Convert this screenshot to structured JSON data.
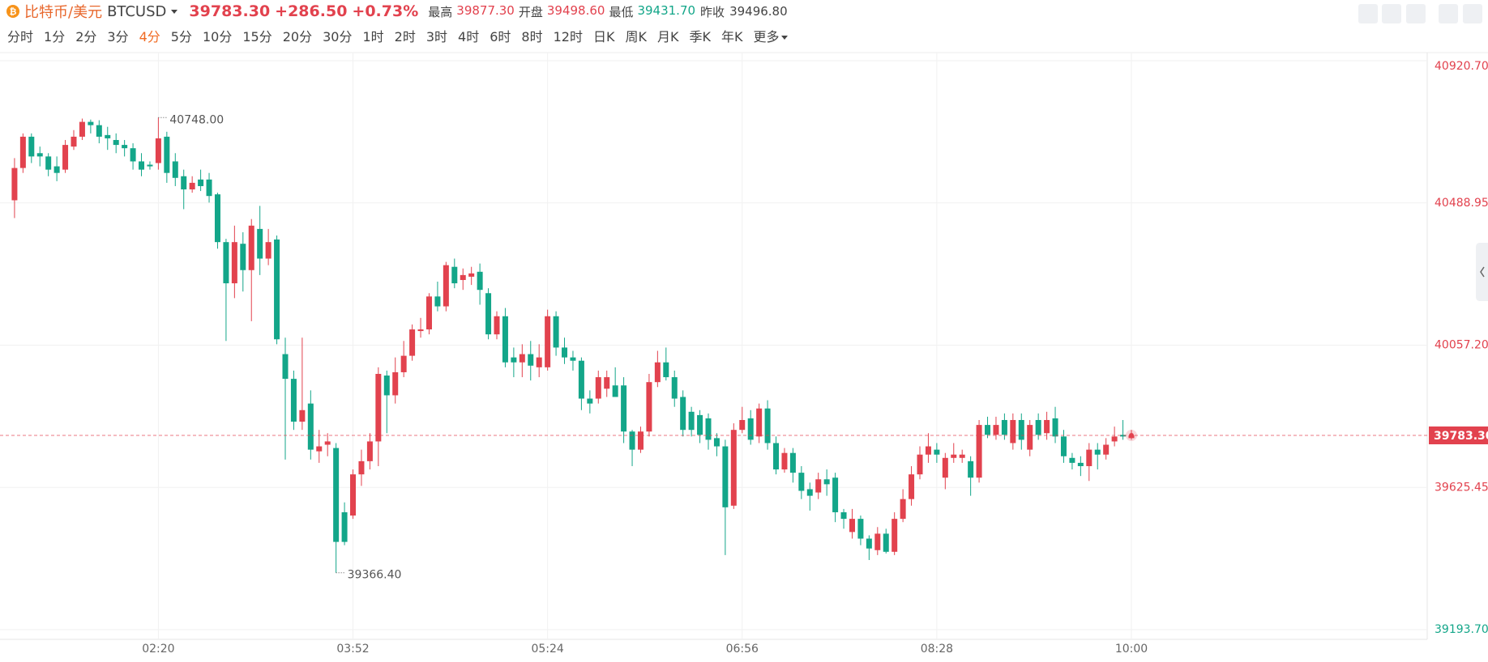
{
  "header": {
    "name": "比特币/美元",
    "symbol": "BTCUSD",
    "change": "+286.50",
    "change_pct": "+0.73%",
    "stats": [
      {
        "label": "最高",
        "value": "39877.30"
      },
      {
        "label": "开盘",
        "value": "39498.60"
      },
      {
        "label": "最低",
        "value": "39431.70"
      }
    ],
    "prev_close_label": "昨收",
    "more": "更多",
    "periods": [
      "分时",
      "1分",
      "2分",
      "3分",
      "4分",
      "5分",
      "10分",
      "15分",
      "20分",
      "30分",
      "1时",
      "2时",
      "3时",
      "4时",
      "6时",
      "8时",
      "12时",
      "日K",
      "周K",
      "月K",
      "季K",
      "年K"
    ],
    "active_period": "4分"
  },
  "chart_data": {
    "type": "candlestick",
    "up_color": "#e2424e",
    "down_color": "#13a689",
    "grid": true,
    "categories": [
      null,
      null,
      null,
      null,
      null,
      null,
      null,
      null,
      null,
      null,
      null,
      null,
      null,
      null,
      null,
      null,
      null,
      "02:20",
      null,
      null,
      null,
      null,
      null,
      null,
      null,
      null,
      null,
      null,
      null,
      null,
      null,
      null,
      null,
      null,
      null,
      null,
      null,
      null,
      null,
      null,
      "03:52",
      null,
      null,
      null,
      null,
      null,
      null,
      null,
      null,
      null,
      null,
      null,
      null,
      null,
      null,
      null,
      null,
      null,
      null,
      null,
      null,
      null,
      null,
      "05:24",
      null,
      null,
      null,
      null,
      null,
      null,
      null,
      null,
      null,
      null,
      null,
      null,
      null,
      null,
      null,
      null,
      null,
      null,
      null,
      null,
      null,
      null,
      "06:56",
      null,
      null,
      null,
      null,
      null,
      null,
      null,
      null,
      null,
      null,
      null,
      null,
      null,
      null,
      null,
      null,
      null,
      null,
      null,
      null,
      null,
      null,
      "08:28",
      null,
      null,
      null,
      null,
      null,
      null,
      null,
      null,
      null,
      null,
      null,
      null,
      null,
      null,
      null,
      null,
      null,
      null,
      null,
      null,
      null,
      null,
      "10:00"
    ],
    "open": [
      40497,
      40595,
      40690,
      40640,
      40630,
      40600,
      40590,
      40660,
      40690,
      40735,
      40725,
      40695,
      40680,
      40665,
      40655,
      40615,
      40605,
      40610,
      40690,
      40615,
      40570,
      40530,
      40560,
      40560,
      40515,
      40370,
      40245,
      40365,
      40285,
      40410,
      40320,
      40378,
      40030,
      39955,
      39825,
      39880,
      39735,
      39755,
      39745,
      39550,
      39540,
      39665,
      39705,
      39765,
      39965,
      39905,
      39975,
      40025,
      40100,
      40105,
      40205,
      40175,
      40295,
      40255,
      40265,
      40280,
      40215,
      40090,
      40145,
      40020,
      40005,
      40030,
      39990,
      39990,
      40145,
      40050,
      40020,
      40010,
      39895,
      39895,
      39925,
      39935,
      39935,
      39795,
      39740,
      39795,
      39945,
      40005,
      39960,
      39900,
      39855,
      39845,
      39835,
      39775,
      39750,
      39570,
      39800,
      39835,
      39780,
      39865,
      39760,
      39680,
      39730,
      39670,
      39620,
      39610,
      39650,
      39655,
      39550,
      39490,
      39530,
      39470,
      39435,
      39485,
      39430,
      39530,
      39590,
      39665,
      39725,
      39740,
      39655,
      39715,
      39715,
      39705,
      39655,
      39815,
      39785,
      39830,
      39760,
      39830,
      39740,
      39830,
      39790,
      39835,
      39780,
      39715,
      39700,
      39690,
      39740,
      39725,
      39765,
      39785,
      39775
    ],
    "high": [
      40625,
      40700,
      40700,
      40660,
      40640,
      40630,
      40680,
      40710,
      40745,
      40742,
      40740,
      40720,
      40700,
      40680,
      40670,
      40640,
      40615,
      40748,
      40705,
      40640,
      40590,
      40570,
      40590,
      40580,
      40520,
      40380,
      40420,
      40400,
      40440,
      40480,
      40410,
      40390,
      40080,
      39980,
      40080,
      39920,
      39800,
      39790,
      39760,
      39580,
      39680,
      39740,
      39790,
      39990,
      39980,
      40020,
      40070,
      40120,
      40140,
      40215,
      40250,
      40310,
      40320,
      40290,
      40295,
      40305,
      40230,
      40160,
      40170,
      40050,
      40060,
      40070,
      40060,
      40165,
      40160,
      40080,
      40040,
      40020,
      39920,
      39980,
      39980,
      39990,
      39960,
      39800,
      39810,
      39970,
      40040,
      40050,
      39980,
      39920,
      39870,
      39860,
      39850,
      39790,
      39770,
      39820,
      39870,
      39860,
      39880,
      39890,
      39780,
      39745,
      39745,
      39690,
      39640,
      39670,
      39680,
      39670,
      39560,
      39560,
      39540,
      39480,
      39505,
      39500,
      39550,
      39620,
      39690,
      39750,
      39790,
      39760,
      39730,
      39760,
      39740,
      39720,
      39830,
      39840,
      39840,
      39850,
      39850,
      39850,
      39830,
      39850,
      39855,
      39870,
      39800,
      39730,
      39720,
      39760,
      39760,
      39775,
      39810,
      39830,
      39800
    ],
    "low": [
      40443,
      40580,
      40610,
      40600,
      40570,
      40555,
      40580,
      40650,
      40680,
      40700,
      40670,
      40650,
      40640,
      40630,
      40590,
      40570,
      40590,
      40590,
      40550,
      40540,
      40470,
      40520,
      40525,
      40490,
      40350,
      40070,
      40200,
      40220,
      40130,
      40270,
      40300,
      40060,
      39710,
      39800,
      39800,
      39710,
      39700,
      39720,
      39366.4,
      39450,
      39530,
      39630,
      39680,
      39690,
      39790,
      39880,
      39960,
      40010,
      40080,
      40090,
      40160,
      40160,
      40230,
      40225,
      40240,
      40180,
      40075,
      40075,
      39990,
      39960,
      39960,
      39950,
      39960,
      39980,
      40025,
      40000,
      39980,
      39860,
      39850,
      39880,
      39900,
      39900,
      39760,
      39690,
      39730,
      39780,
      39930,
      39950,
      39870,
      39780,
      39780,
      39760,
      39740,
      39720,
      39420,
      39560,
      39790,
      39755,
      39760,
      39740,
      39665,
      39670,
      39640,
      39590,
      39555,
      39590,
      39600,
      39520,
      39500,
      39470,
      39450,
      39405,
      39420,
      39425,
      39420,
      39520,
      39570,
      39650,
      39700,
      39700,
      39620,
      39700,
      39700,
      39600,
      39640,
      39775,
      39770,
      39770,
      39740,
      39740,
      39720,
      39770,
      39770,
      39760,
      39700,
      39680,
      39660,
      39645,
      39680,
      39710,
      39750,
      39770,
      39770
    ],
    "close": [
      40595,
      40690,
      40630,
      40630,
      40590,
      40580,
      40665,
      40690,
      40735,
      40725,
      40690,
      40685,
      40665,
      40655,
      40615,
      40590,
      40600,
      40685,
      40580,
      40565,
      40530,
      40550,
      40540,
      40510,
      40370,
      40245,
      40370,
      40285,
      40420,
      40320,
      40370,
      40075,
      39955,
      39825,
      39860,
      39740,
      39750,
      39765,
      39460,
      39460,
      39665,
      39705,
      39765,
      39970,
      39905,
      39975,
      40025,
      40105,
      40105,
      40205,
      40175,
      40300,
      40245,
      40270,
      40275,
      40225,
      40090,
      40145,
      40005,
      40005,
      40030,
      39995,
      40020,
      40145,
      40050,
      40020,
      40010,
      39895,
      39880,
      39960,
      39960,
      39900,
      39795,
      39740,
      39795,
      39945,
      40005,
      39960,
      39895,
      39800,
      39800,
      39785,
      39770,
      39750,
      39565,
      39800,
      39830,
      39770,
      39865,
      39760,
      39680,
      39730,
      39670,
      39615,
      39600,
      39650,
      39635,
      39550,
      39530,
      39530,
      39470,
      39440,
      39485,
      39430,
      39530,
      39590,
      39665,
      39725,
      39750,
      39725,
      39715,
      39725,
      39725,
      39655,
      39815,
      39785,
      39815,
      39785,
      39830,
      39770,
      39815,
      39785,
      39830,
      39780,
      39720,
      39700,
      39690,
      39740,
      39725,
      39755,
      39780,
      39780,
      39783.3
    ],
    "ylim": [
      39193.7,
      40920.7
    ],
    "yticks": [
      {
        "value": 39193.7,
        "label": "39193.70"
      },
      {
        "value": 39625.45,
        "label": "39625.45"
      },
      {
        "value": 40057.2,
        "label": "40057.20"
      },
      {
        "value": 40488.95,
        "label": "40488.95"
      },
      {
        "value": 40920.7,
        "label": "40920.70"
      }
    ],
    "last_price": {
      "value": 39783.3,
      "label": "39783.30"
    },
    "reference_price": {
      "value": 39496.8,
      "label": "39496.80"
    },
    "max_marker": {
      "value": 40748,
      "label": "40748.00"
    },
    "min_marker": {
      "value": 39366.4,
      "label": "39366.40"
    }
  }
}
